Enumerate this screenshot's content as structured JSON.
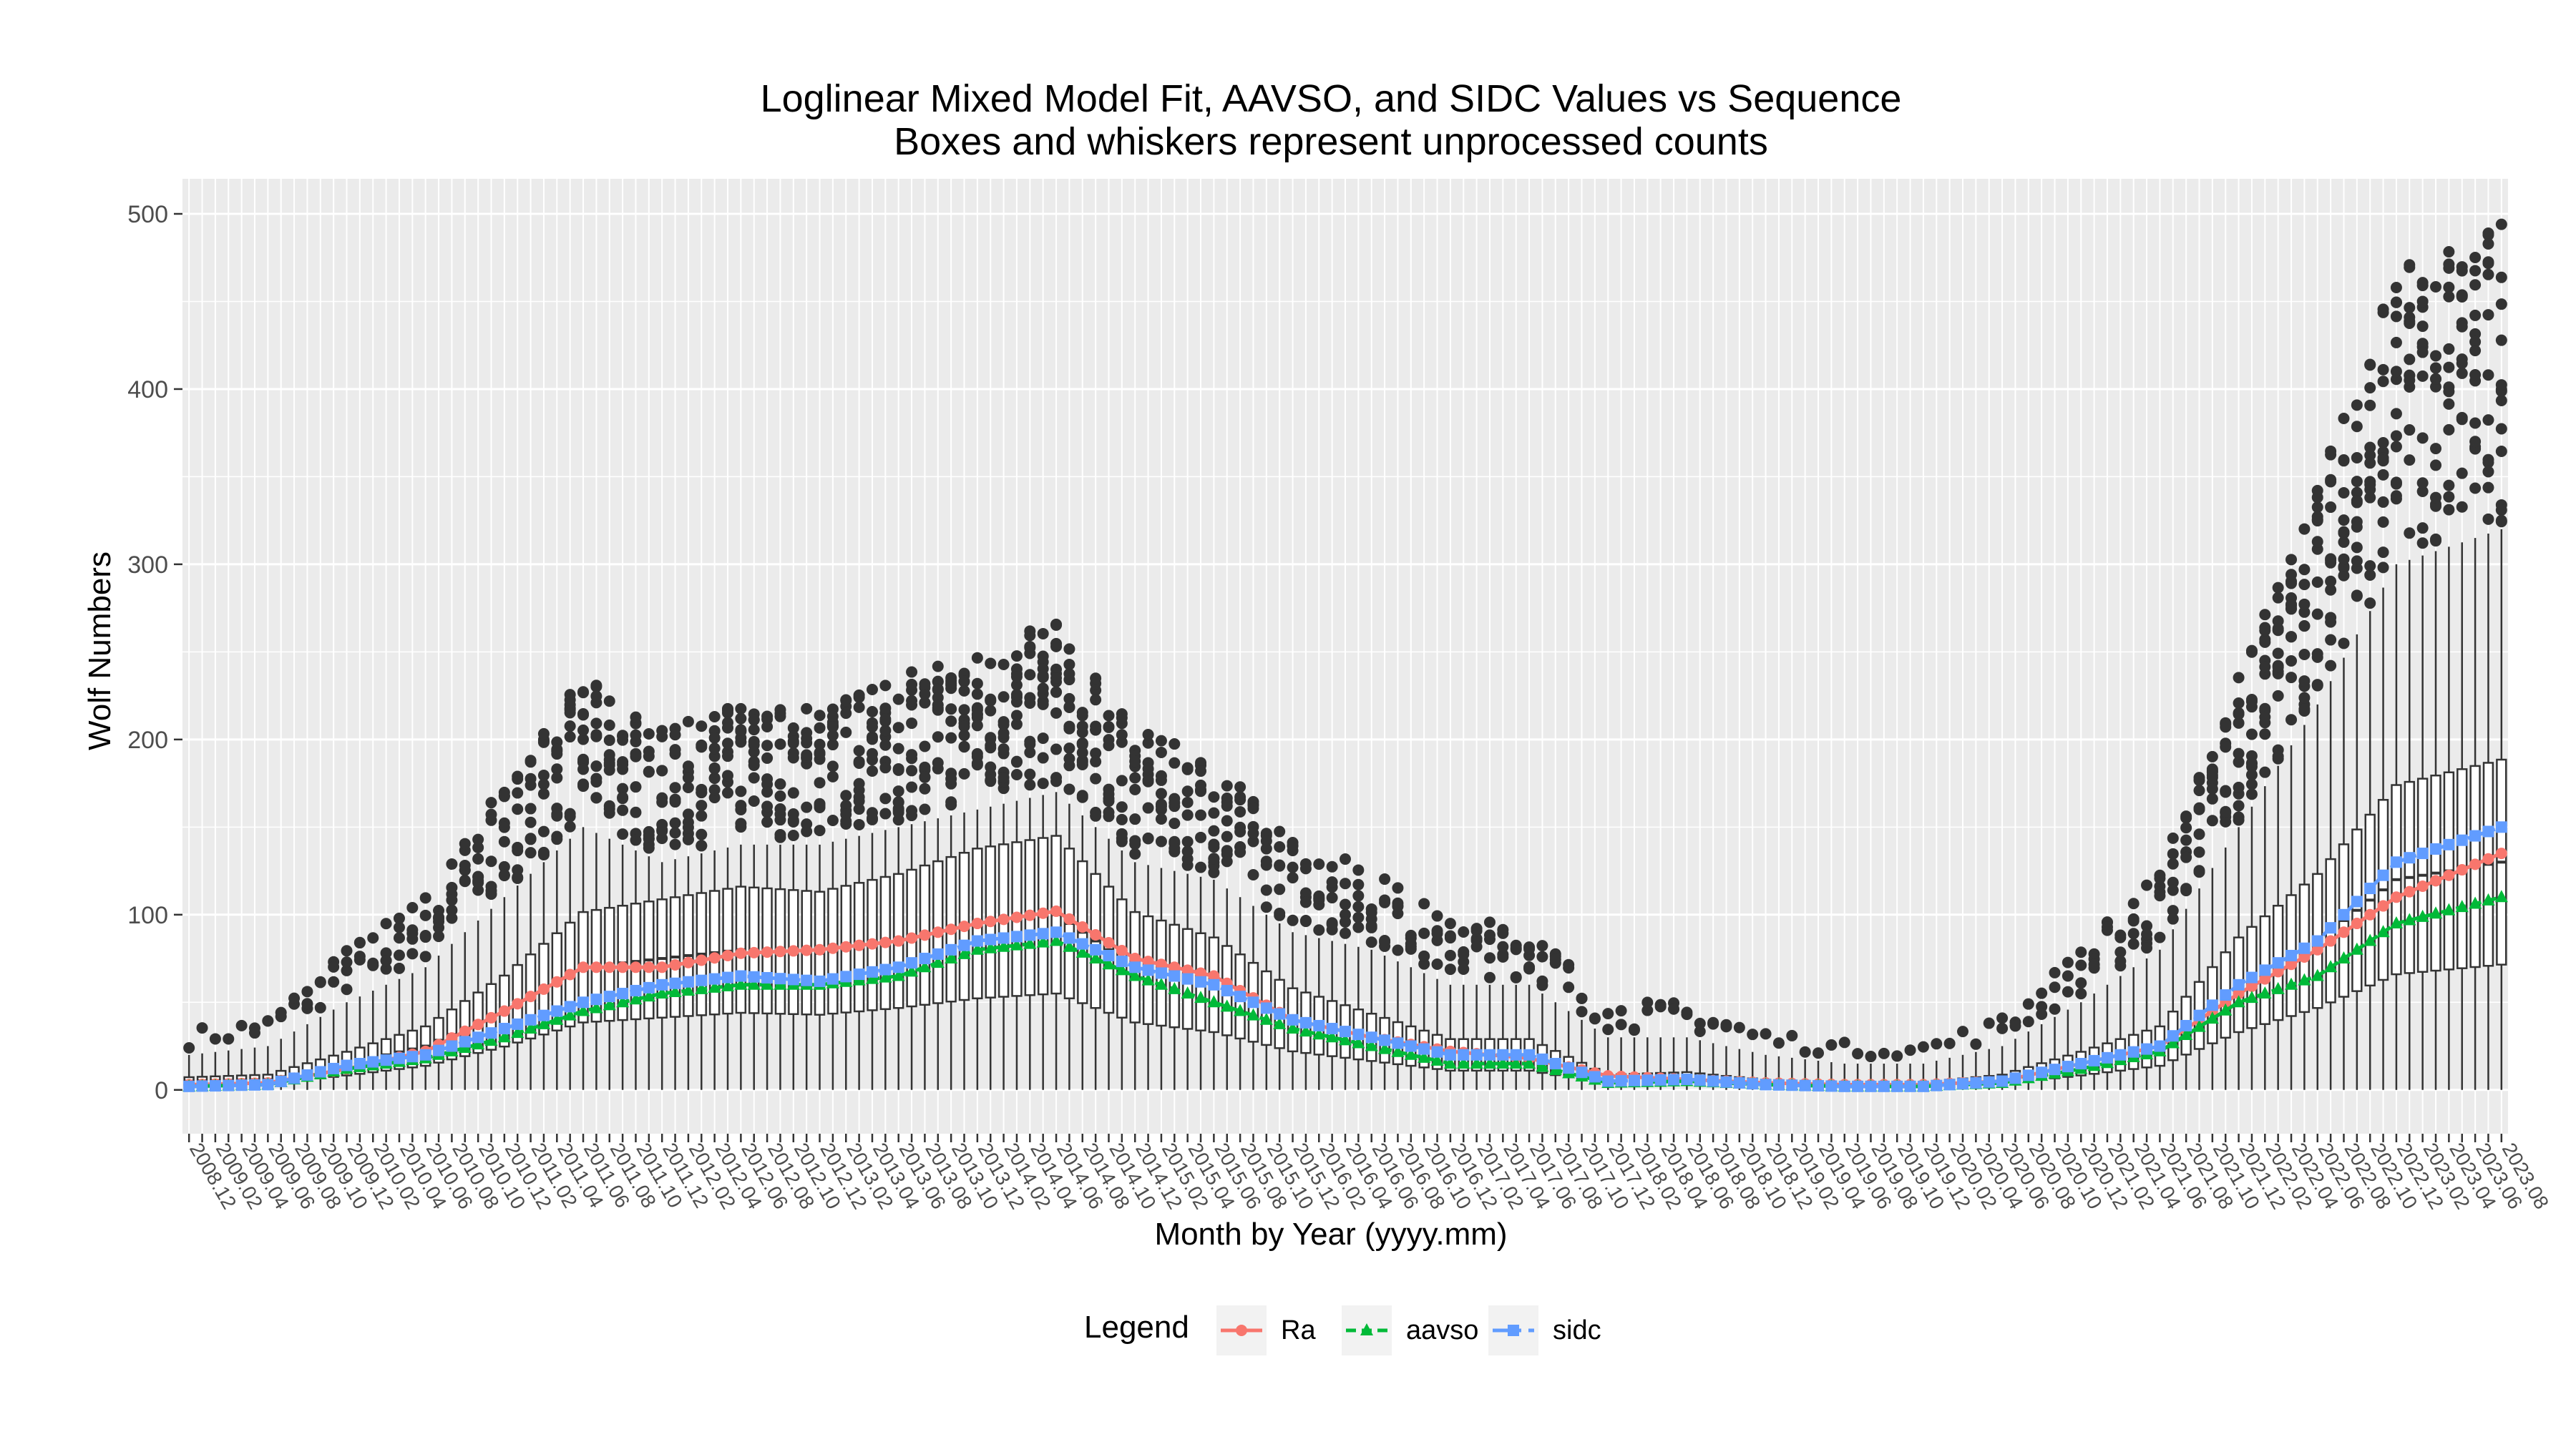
{
  "chart_data": {
    "type": "box+line",
    "title": "Loglinear Mixed Model Fit, AAVSO, and SIDC Values vs Sequence",
    "subtitle": "Boxes and whiskers represent unprocessed counts",
    "xlabel": "Month by Year (yyyy.mm)",
    "ylabel": "Wolf Numbers",
    "ylim": [
      -25,
      520
    ],
    "yticks": [
      0,
      100,
      200,
      300,
      400,
      500
    ],
    "grid": true,
    "legend": {
      "title": "Legend",
      "position": "bottom",
      "entries": [
        "Ra",
        "aavso",
        "sidc"
      ]
    },
    "x_start": "2008.12",
    "x_end": "2023.08",
    "x_tick_labels": [
      "2008.12",
      "2009.02",
      "2009.04",
      "2009.06",
      "2009.08",
      "2009.10",
      "2009.12",
      "2010.02",
      "2010.04",
      "2010.06",
      "2010.08",
      "2010.10",
      "2010.12",
      "2011.02",
      "2011.04",
      "2011.06",
      "2011.08",
      "2011.10",
      "2011.12",
      "2012.02",
      "2012.04",
      "2012.06",
      "2012.08",
      "2012.10",
      "2012.12",
      "2013.02",
      "2013.04",
      "2013.06",
      "2013.08",
      "2013.10",
      "2013.12",
      "2014.02",
      "2014.04",
      "2014.06",
      "2014.08",
      "2014.10",
      "2014.12",
      "2015.02",
      "2015.04",
      "2015.06",
      "2015.08",
      "2015.10",
      "2015.12",
      "2016.02",
      "2016.04",
      "2016.06",
      "2016.08",
      "2016.10",
      "2016.12",
      "2017.02",
      "2017.04",
      "2017.06",
      "2017.08",
      "2017.10",
      "2017.12",
      "2018.02",
      "2018.04",
      "2018.06",
      "2018.08",
      "2018.10",
      "2018.12",
      "2019.02",
      "2019.04",
      "2019.06",
      "2019.08",
      "2019.10",
      "2019.12",
      "2020.02",
      "2020.04",
      "2020.06",
      "2020.08",
      "2020.10",
      "2020.12",
      "2021.02",
      "2021.04",
      "2021.06",
      "2021.08",
      "2021.10",
      "2021.12",
      "2022.02",
      "2022.04",
      "2022.06",
      "2022.08",
      "2022.10",
      "2022.12",
      "2023.02",
      "2023.04",
      "2023.06",
      "2023.08"
    ],
    "anchors": {
      "Ra": [
        [
          2008.12,
          3
        ],
        [
          2009.06,
          4
        ],
        [
          2009.12,
          12
        ],
        [
          2010.06,
          22
        ],
        [
          2010.12,
          45
        ],
        [
          2011.06,
          70
        ],
        [
          2011.12,
          70
        ],
        [
          2012.06,
          78
        ],
        [
          2012.12,
          80
        ],
        [
          2013.06,
          85
        ],
        [
          2013.12,
          95
        ],
        [
          2014.06,
          102
        ],
        [
          2014.12,
          75
        ],
        [
          2015.06,
          65
        ],
        [
          2015.12,
          40
        ],
        [
          2016.06,
          30
        ],
        [
          2016.12,
          22
        ],
        [
          2017.06,
          18
        ],
        [
          2017.12,
          8
        ],
        [
          2018.06,
          6
        ],
        [
          2018.12,
          4
        ],
        [
          2019.06,
          3
        ],
        [
          2019.12,
          3
        ],
        [
          2020.06,
          5
        ],
        [
          2020.12,
          15
        ],
        [
          2021.06,
          25
        ],
        [
          2021.12,
          55
        ],
        [
          2022.06,
          80
        ],
        [
          2022.12,
          110
        ],
        [
          2023.08,
          135
        ]
      ],
      "aavso": [
        [
          2008.12,
          2
        ],
        [
          2009.06,
          3
        ],
        [
          2009.12,
          12
        ],
        [
          2010.06,
          18
        ],
        [
          2010.12,
          30
        ],
        [
          2011.06,
          45
        ],
        [
          2011.12,
          55
        ],
        [
          2012.06,
          60
        ],
        [
          2012.12,
          60
        ],
        [
          2013.06,
          65
        ],
        [
          2013.12,
          80
        ],
        [
          2014.06,
          85
        ],
        [
          2014.12,
          65
        ],
        [
          2015.06,
          50
        ],
        [
          2015.12,
          35
        ],
        [
          2016.06,
          25
        ],
        [
          2016.12,
          15
        ],
        [
          2017.06,
          15
        ],
        [
          2017.12,
          4
        ],
        [
          2018.06,
          5
        ],
        [
          2018.12,
          3
        ],
        [
          2019.06,
          2
        ],
        [
          2019.12,
          2
        ],
        [
          2020.06,
          4
        ],
        [
          2020.12,
          12
        ],
        [
          2021.06,
          22
        ],
        [
          2021.12,
          50
        ],
        [
          2022.06,
          65
        ],
        [
          2022.12,
          95
        ],
        [
          2023.08,
          110
        ]
      ],
      "sidc": [
        [
          2008.12,
          2
        ],
        [
          2009.06,
          3
        ],
        [
          2009.12,
          14
        ],
        [
          2010.06,
          20
        ],
        [
          2010.12,
          35
        ],
        [
          2011.06,
          50
        ],
        [
          2011.12,
          60
        ],
        [
          2012.06,
          65
        ],
        [
          2012.12,
          62
        ],
        [
          2013.06,
          70
        ],
        [
          2013.12,
          85
        ],
        [
          2014.06,
          90
        ],
        [
          2014.12,
          70
        ],
        [
          2015.06,
          60
        ],
        [
          2015.12,
          40
        ],
        [
          2016.06,
          30
        ],
        [
          2016.12,
          20
        ],
        [
          2017.06,
          20
        ],
        [
          2017.12,
          5
        ],
        [
          2018.06,
          6
        ],
        [
          2018.12,
          3
        ],
        [
          2019.06,
          2
        ],
        [
          2019.12,
          2
        ],
        [
          2020.06,
          5
        ],
        [
          2020.12,
          15
        ],
        [
          2021.06,
          25
        ],
        [
          2021.12,
          60
        ],
        [
          2022.06,
          85
        ],
        [
          2022.12,
          130
        ],
        [
          2023.08,
          150
        ]
      ]
    },
    "box_envelope": [
      [
        2008.12,
        5,
        20
      ],
      [
        2009.06,
        6,
        25
      ],
      [
        2009.12,
        15,
        50
      ],
      [
        2010.06,
        25,
        70
      ],
      [
        2010.12,
        45,
        110
      ],
      [
        2011.06,
        70,
        150
      ],
      [
        2011.12,
        75,
        130
      ],
      [
        2012.06,
        80,
        140
      ],
      [
        2012.12,
        78,
        140
      ],
      [
        2013.06,
        85,
        150
      ],
      [
        2013.12,
        95,
        160
      ],
      [
        2014.06,
        100,
        170
      ],
      [
        2014.12,
        70,
        130
      ],
      [
        2015.06,
        60,
        120
      ],
      [
        2015.12,
        40,
        90
      ],
      [
        2016.06,
        30,
        80
      ],
      [
        2016.12,
        20,
        60
      ],
      [
        2017.06,
        20,
        60
      ],
      [
        2017.12,
        6,
        30
      ],
      [
        2018.06,
        7,
        30
      ],
      [
        2018.12,
        4,
        20
      ],
      [
        2019.06,
        3,
        15
      ],
      [
        2019.12,
        3,
        15
      ],
      [
        2020.06,
        6,
        25
      ],
      [
        2020.12,
        15,
        50
      ],
      [
        2021.06,
        25,
        80
      ],
      [
        2021.12,
        60,
        150
      ],
      [
        2022.06,
        85,
        220
      ],
      [
        2022.12,
        120,
        300
      ],
      [
        2023.08,
        130,
        320
      ]
    ],
    "series_colors": {
      "Ra": "#F8766D",
      "aavso": "#00BA38",
      "sidc": "#619CFF"
    },
    "panel_background": "#EBEBEB"
  }
}
